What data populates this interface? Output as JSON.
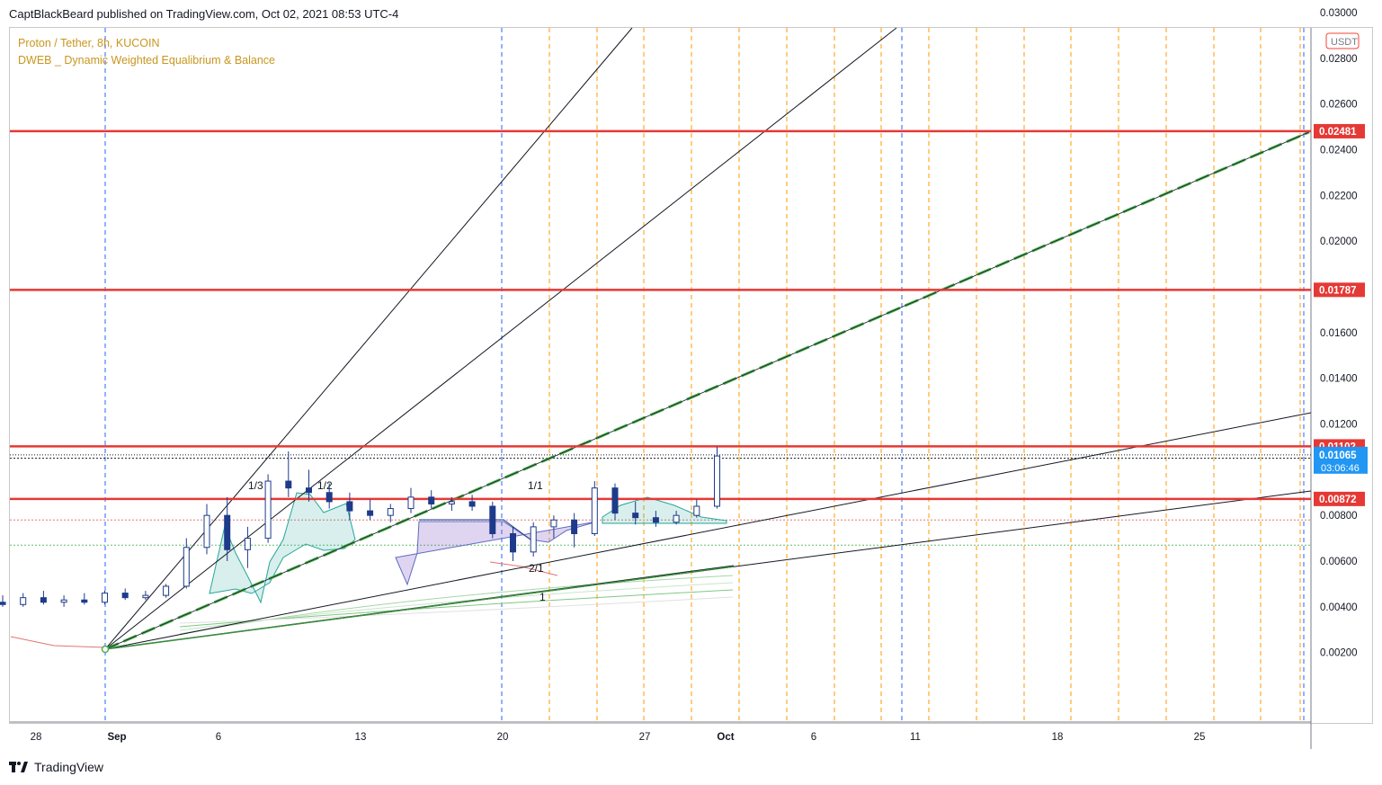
{
  "header": {
    "publisher_line": "CaptBlackBeard published on TradingView.com, Oct 02, 2021 08:53 UTC-4"
  },
  "legend": {
    "symbol_line": "Proton / Tether, 8h, KUCOIN",
    "indicator_line": "DWEB _ Dynamic Weighted Equalibrium & Balance"
  },
  "footer": {
    "brand": "TradingView"
  },
  "colors": {
    "red_level": "#e53935",
    "dashed_green": "#4caf50",
    "orange_vline": "#ff9800",
    "blue_vline": "#2962ff",
    "up_candle": "#ffffff",
    "down_candle": "#1e3a8a",
    "current_price_tag": "#2196f3"
  },
  "chart_data": {
    "type": "candlestick",
    "y_unit": "USDT",
    "ylim": [
      0.0,
      0.031
    ],
    "y_ticks": [
      "0.03000",
      "0.02800",
      "0.02600",
      "0.02400",
      "0.02200",
      "0.02000",
      "0.01600",
      "0.01400",
      "0.01200",
      "0.00800",
      "0.00600",
      "0.00400",
      "0.00200"
    ],
    "x_ticks": [
      "28",
      "Sep",
      "6",
      "13",
      "20",
      "27",
      "Oct",
      "6",
      "11",
      "18",
      "25"
    ],
    "price_levels": [
      {
        "label": "0.02481",
        "value": 0.02481
      },
      {
        "label": "0.01787",
        "value": 0.01787
      },
      {
        "label": "0.01102",
        "value": 0.01102
      },
      {
        "label": "0.00872",
        "value": 0.00872
      }
    ],
    "current_price": {
      "label": "0.01065",
      "value": 0.01065,
      "countdown": "03:06:46"
    },
    "fan_labels": [
      "1/3",
      "1/2",
      "1/1",
      "2/1",
      "1"
    ],
    "candles": [
      {
        "d": "Aug 26",
        "o": 0.0041,
        "h": 0.0043,
        "l": 0.0039,
        "c": 0.0042
      },
      {
        "d": "Aug 27",
        "o": 0.0042,
        "h": 0.0045,
        "l": 0.004,
        "c": 0.0041
      },
      {
        "d": "Aug 28",
        "o": 0.0041,
        "h": 0.0046,
        "l": 0.004,
        "c": 0.0044
      },
      {
        "d": "Aug 29",
        "o": 0.0044,
        "h": 0.0047,
        "l": 0.0041,
        "c": 0.0042
      },
      {
        "d": "Aug 30",
        "o": 0.0042,
        "h": 0.0045,
        "l": 0.004,
        "c": 0.0043
      },
      {
        "d": "Aug 31",
        "o": 0.0043,
        "h": 0.0046,
        "l": 0.0041,
        "c": 0.0042
      },
      {
        "d": "Sep 1",
        "o": 0.0042,
        "h": 0.0047,
        "l": 0.0041,
        "c": 0.0046
      },
      {
        "d": "Sep 2",
        "o": 0.0046,
        "h": 0.0048,
        "l": 0.0043,
        "c": 0.0044
      },
      {
        "d": "Sep 3",
        "o": 0.0044,
        "h": 0.0047,
        "l": 0.0043,
        "c": 0.0045
      },
      {
        "d": "Sep 4",
        "o": 0.0045,
        "h": 0.005,
        "l": 0.0044,
        "c": 0.0049
      },
      {
        "d": "Sep 5",
        "o": 0.0049,
        "h": 0.007,
        "l": 0.0048,
        "c": 0.0066
      },
      {
        "d": "Sep 6",
        "o": 0.0066,
        "h": 0.0085,
        "l": 0.0063,
        "c": 0.008
      },
      {
        "d": "Sep 7",
        "o": 0.008,
        "h": 0.0088,
        "l": 0.006,
        "c": 0.0065
      },
      {
        "d": "Sep 8",
        "o": 0.0065,
        "h": 0.0075,
        "l": 0.0057,
        "c": 0.007
      },
      {
        "d": "Sep 9",
        "o": 0.007,
        "h": 0.0098,
        "l": 0.0068,
        "c": 0.0095
      },
      {
        "d": "Sep 10",
        "o": 0.0095,
        "h": 0.0108,
        "l": 0.0088,
        "c": 0.0092
      },
      {
        "d": "Sep 11",
        "o": 0.0092,
        "h": 0.01,
        "l": 0.0086,
        "c": 0.009
      },
      {
        "d": "Sep 12",
        "o": 0.009,
        "h": 0.0094,
        "l": 0.0083,
        "c": 0.0086
      },
      {
        "d": "Sep 13",
        "o": 0.0086,
        "h": 0.009,
        "l": 0.0078,
        "c": 0.0082
      },
      {
        "d": "Sep 14",
        "o": 0.0082,
        "h": 0.0087,
        "l": 0.0078,
        "c": 0.008
      },
      {
        "d": "Sep 15",
        "o": 0.008,
        "h": 0.0085,
        "l": 0.0077,
        "c": 0.0083
      },
      {
        "d": "Sep 16",
        "o": 0.0083,
        "h": 0.0092,
        "l": 0.0081,
        "c": 0.0088
      },
      {
        "d": "Sep 17",
        "o": 0.0088,
        "h": 0.0091,
        "l": 0.0083,
        "c": 0.0085
      },
      {
        "d": "Sep 18",
        "o": 0.0085,
        "h": 0.0088,
        "l": 0.0082,
        "c": 0.0086
      },
      {
        "d": "Sep 19",
        "o": 0.0086,
        "h": 0.0089,
        "l": 0.0082,
        "c": 0.0084
      },
      {
        "d": "Sep 20",
        "o": 0.0084,
        "h": 0.0086,
        "l": 0.007,
        "c": 0.0072
      },
      {
        "d": "Sep 21",
        "o": 0.0072,
        "h": 0.0075,
        "l": 0.006,
        "c": 0.0064
      },
      {
        "d": "Sep 22",
        "o": 0.0064,
        "h": 0.0077,
        "l": 0.0062,
        "c": 0.0075
      },
      {
        "d": "Sep 23",
        "o": 0.0075,
        "h": 0.008,
        "l": 0.007,
        "c": 0.0078
      },
      {
        "d": "Sep 24",
        "o": 0.0078,
        "h": 0.0081,
        "l": 0.0066,
        "c": 0.0072
      },
      {
        "d": "Sep 25",
        "o": 0.0072,
        "h": 0.0095,
        "l": 0.0071,
        "c": 0.0092
      },
      {
        "d": "Sep 26",
        "o": 0.0092,
        "h": 0.0094,
        "l": 0.0078,
        "c": 0.0081
      },
      {
        "d": "Sep 27",
        "o": 0.0081,
        "h": 0.0086,
        "l": 0.0076,
        "c": 0.0079
      },
      {
        "d": "Sep 28",
        "o": 0.0079,
        "h": 0.0082,
        "l": 0.0075,
        "c": 0.0077
      },
      {
        "d": "Sep 29",
        "o": 0.0077,
        "h": 0.0082,
        "l": 0.0076,
        "c": 0.008
      },
      {
        "d": "Sep 30",
        "o": 0.008,
        "h": 0.0087,
        "l": 0.0079,
        "c": 0.0084
      },
      {
        "d": "Oct 1",
        "o": 0.0084,
        "h": 0.011,
        "l": 0.0083,
        "c": 0.0106
      }
    ]
  }
}
